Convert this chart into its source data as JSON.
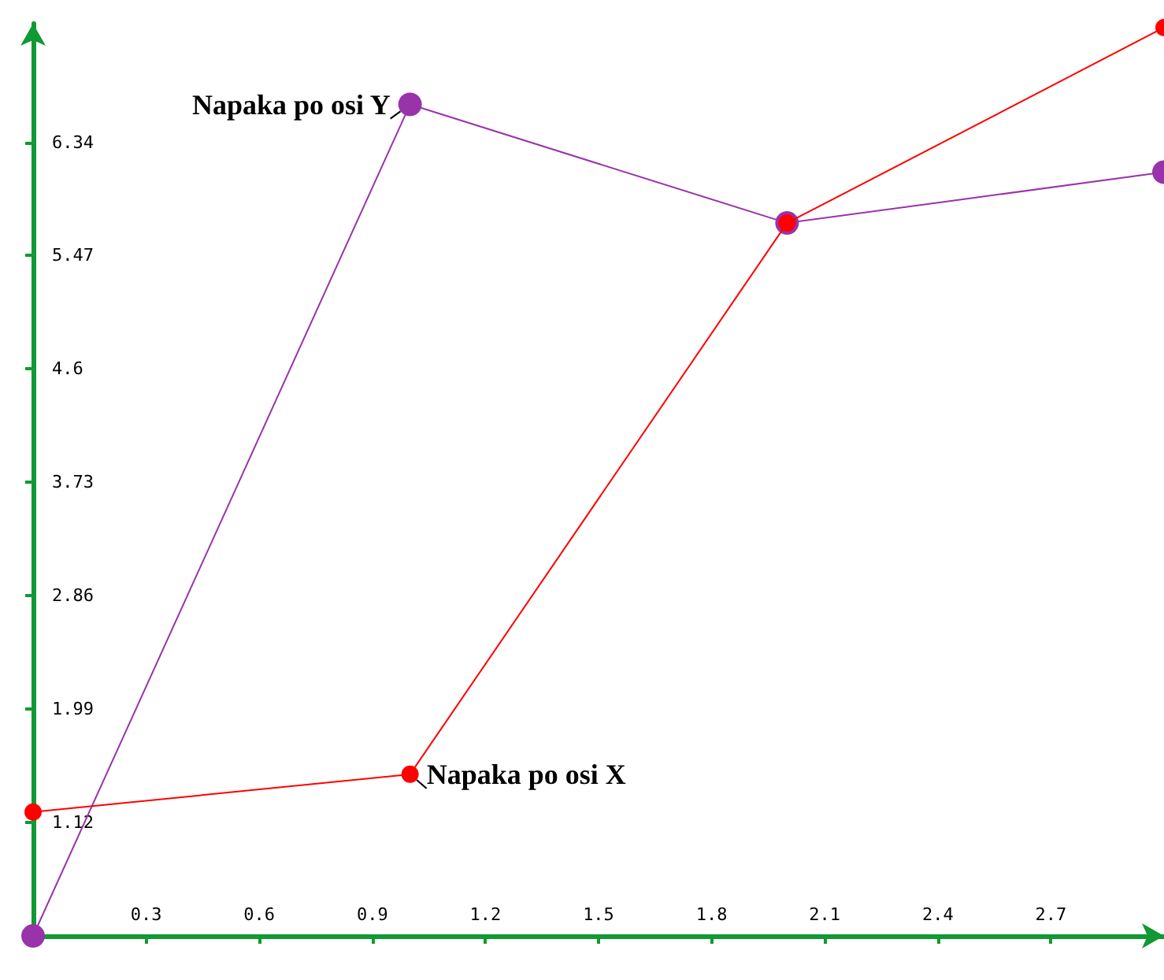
{
  "chart_data": {
    "type": "line",
    "x": [
      0,
      1,
      2,
      3
    ],
    "series": [
      {
        "name": "Napaka po osi Y",
        "color": "#9933aa",
        "values": [
          0.25,
          6.63,
          5.72,
          6.11
        ]
      },
      {
        "name": "Napaka po osi X",
        "color": "#ff0000",
        "values": [
          1.2,
          1.49,
          5.72,
          7.22
        ]
      }
    ],
    "xlim": [
      0,
      3
    ],
    "xticks": [
      0.3,
      0.6,
      0.9,
      1.2,
      1.5,
      1.8,
      2.1,
      2.4,
      2.7
    ],
    "ylim": [
      0.25,
      7.25
    ],
    "yticks": [
      1.12,
      1.99,
      2.86,
      3.73,
      4.6,
      5.47,
      6.34
    ],
    "grid": false,
    "legend": false,
    "marker": "circle",
    "line_style": "solid"
  }
}
